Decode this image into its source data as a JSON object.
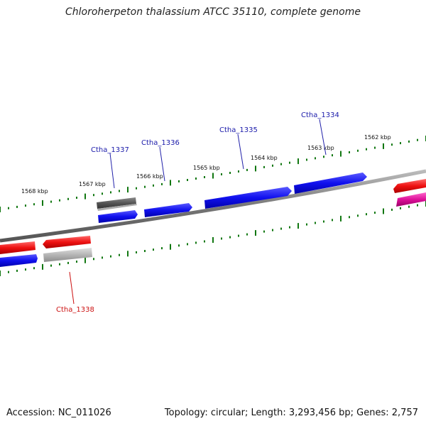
{
  "title": "Chloroherpeton thalassium ATCC 35110, complete genome",
  "footer": {
    "accession": "Accession: NC_011026",
    "summary": "Topology: circular; Length: 3,293,456 bp; Genes: 2,757"
  },
  "colors": {
    "forward_gene": "#1a1aee",
    "reverse_gene": "#ee1111",
    "forward_dark_gene": "#555555",
    "reverse_light_gene": "#b5b5b5",
    "magenta_gene": "#dd1199",
    "backbone": "#888888",
    "tick": "#117711",
    "forward_label": "#1a1aaa",
    "reverse_label": "#cc1111"
  },
  "kbp_ticks": [
    {
      "label": "1562 kbp"
    },
    {
      "label": "1563 kbp"
    },
    {
      "label": "1564 kbp"
    },
    {
      "label": "1565 kbp"
    },
    {
      "label": "1566 kbp"
    },
    {
      "label": "1567 kbp"
    },
    {
      "label": "1568 kbp"
    }
  ],
  "genes": [
    {
      "label": "Ctha_1334",
      "strand": "forward"
    },
    {
      "label": "Ctha_1335",
      "strand": "forward"
    },
    {
      "label": "Ctha_1336",
      "strand": "forward"
    },
    {
      "label": "Ctha_1337",
      "strand": "forward"
    },
    {
      "label": "Ctha_1338",
      "strand": "reverse"
    }
  ]
}
